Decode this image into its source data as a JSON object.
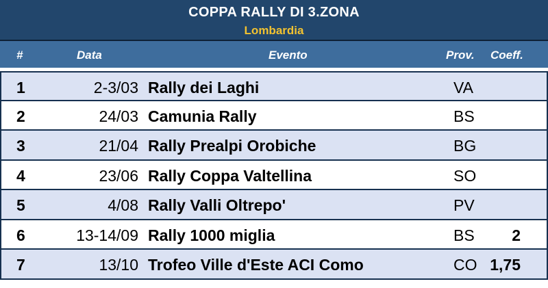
{
  "title": "COPPA RALLY DI 3.ZONA",
  "subtitle": "Lombardia",
  "colors": {
    "title_bg": "#22466c",
    "header_bg": "#3e6d9d",
    "subtitle_text": "#f2c230",
    "row_alt_bg": "#dbe2f3"
  },
  "columns": {
    "num": "#",
    "date": "Data",
    "event": "Evento",
    "prov": "Prov.",
    "coeff": "Coeff."
  },
  "rows": [
    {
      "num": "1",
      "date": "2-3/03",
      "event": "Rally dei Laghi",
      "prov": "VA",
      "coeff": ""
    },
    {
      "num": "2",
      "date": "24/03",
      "event": "Camunia Rally",
      "prov": "BS",
      "coeff": ""
    },
    {
      "num": "3",
      "date": "21/04",
      "event": "Rally Prealpi Orobiche",
      "prov": "BG",
      "coeff": ""
    },
    {
      "num": "4",
      "date": "23/06",
      "event": "Rally Coppa Valtellina",
      "prov": "SO",
      "coeff": ""
    },
    {
      "num": "5",
      "date": "4/08",
      "event": "Rally Valli Oltrepo'",
      "prov": "PV",
      "coeff": ""
    },
    {
      "num": "6",
      "date": "13-14/09",
      "event": "Rally 1000 miglia",
      "prov": "BS",
      "coeff": "2"
    },
    {
      "num": "7",
      "date": "13/10",
      "event": "Trofeo Ville d'Este ACI Como",
      "prov": "CO",
      "coeff": "1,75"
    }
  ]
}
